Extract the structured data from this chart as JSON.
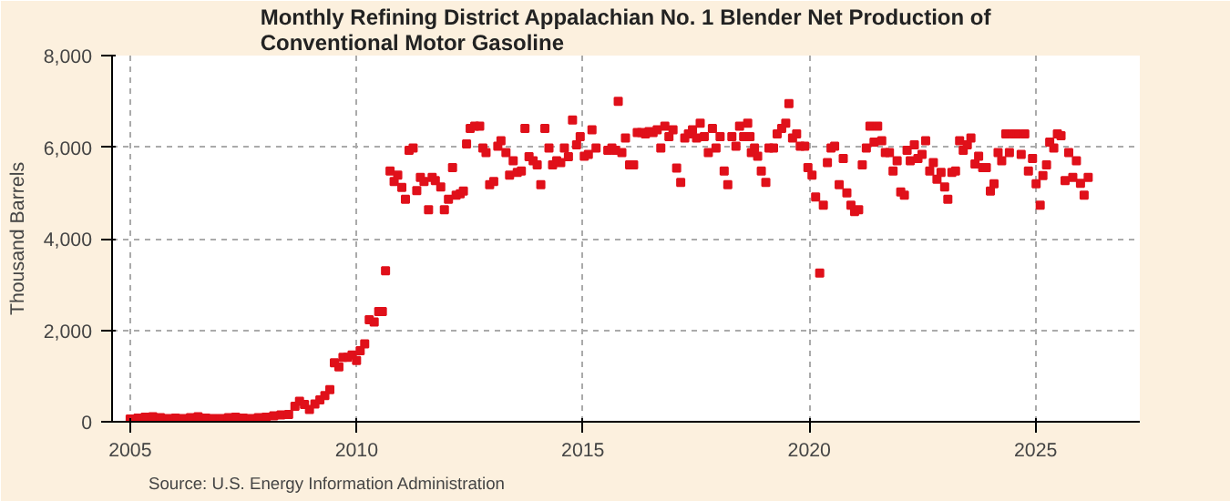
{
  "chart_data": {
    "type": "scatter",
    "title": "Monthly Refining District Appalachian No. 1 Blender Net Production of Conventional Motor Gasoline",
    "ylabel": "Thousand Barrels",
    "annotations": [
      "Source: U.S. Energy Information Administration"
    ],
    "marker": "square",
    "grid": true,
    "xlim": [
      2004.6,
      2027.3
    ],
    "xticks": [
      2005,
      2010,
      2015,
      2020,
      2025
    ],
    "ylim": [
      0,
      8000
    ],
    "yticks": [
      0,
      {
        "value": 2000,
        "label": "2,000"
      },
      {
        "value": 4000,
        "label": "4,000"
      },
      {
        "value": 6000,
        "label": "6,000"
      },
      {
        "value": 8000,
        "label": "8,000"
      }
    ],
    "series": [
      {
        "color": "#e0101a",
        "x": [
          2005.0,
          2005.17,
          2005.33,
          2005.5,
          2005.67,
          2005.83,
          2006.0,
          2006.17,
          2006.33,
          2006.5,
          2006.67,
          2006.83,
          2007.0,
          2007.17,
          2007.33,
          2007.5,
          2007.67,
          2007.83,
          2008.0,
          2008.17,
          2008.33,
          2008.5,
          2008.64,
          2008.74,
          2008.85,
          2008.96,
          2009.08,
          2009.19,
          2009.3,
          2009.41,
          2009.51,
          2009.61,
          2009.7,
          2009.8,
          2009.9,
          2010.0,
          2010.08,
          2010.18,
          2010.28,
          2010.39,
          2010.49,
          2010.57,
          2010.64,
          2010.74,
          2010.83,
          2010.91,
          2011.0,
          2011.08,
          2011.16,
          2011.25,
          2011.33,
          2011.41,
          2011.49,
          2011.59,
          2011.67,
          2011.74,
          2011.86,
          2011.94,
          2012.03,
          2012.12,
          2012.2,
          2012.29,
          2012.36,
          2012.43,
          2012.51,
          2012.61,
          2012.72,
          2012.79,
          2012.86,
          2012.94,
          2013.03,
          2013.12,
          2013.19,
          2013.3,
          2013.38,
          2013.46,
          2013.55,
          2013.64,
          2013.72,
          2013.81,
          2013.9,
          2013.99,
          2014.07,
          2014.16,
          2014.25,
          2014.33,
          2014.42,
          2014.51,
          2014.59,
          2014.68,
          2014.77,
          2014.86,
          2014.94,
          2015.03,
          2015.12,
          2015.2,
          2015.29,
          2015.55,
          2015.64,
          2015.72,
          2015.78,
          2015.86,
          2015.94,
          2016.03,
          2016.12,
          2016.2,
          2016.29,
          2016.38,
          2016.46,
          2016.55,
          2016.64,
          2016.72,
          2016.81,
          2016.9,
          2016.99,
          2017.07,
          2017.16,
          2017.25,
          2017.33,
          2017.42,
          2017.51,
          2017.59,
          2017.68,
          2017.77,
          2017.86,
          2017.94,
          2018.03,
          2018.12,
          2018.2,
          2018.29,
          2018.38,
          2018.46,
          2018.55,
          2018.64,
          2018.69,
          2018.72,
          2018.79,
          2018.86,
          2018.94,
          2019.04,
          2019.11,
          2019.21,
          2019.29,
          2019.39,
          2019.48,
          2019.55,
          2019.63,
          2019.72,
          2019.8,
          2019.9,
          2019.97,
          2020.06,
          2020.14,
          2020.23,
          2020.31,
          2020.4,
          2020.48,
          2020.56,
          2020.66,
          2020.75,
          2020.83,
          2020.92,
          2021.0,
          2021.09,
          2021.17,
          2021.26,
          2021.34,
          2021.43,
          2021.51,
          2021.6,
          2021.68,
          2021.77,
          2021.85,
          2021.94,
          2022.02,
          2022.1,
          2022.16,
          2022.23,
          2022.32,
          2022.4,
          2022.49,
          2022.57,
          2022.66,
          2022.74,
          2022.82,
          2022.91,
          2022.99,
          2023.06,
          2023.15,
          2023.23,
          2023.32,
          2023.4,
          2023.49,
          2023.57,
          2023.66,
          2023.74,
          2023.83,
          2023.91,
          2024.0,
          2024.08,
          2024.17,
          2024.25,
          2024.34,
          2024.42,
          2024.51,
          2024.59,
          2024.68,
          2024.76,
          2024.84,
          2024.93,
          2025.01,
          2025.1,
          2025.16,
          2025.24,
          2025.31,
          2025.4,
          2025.48,
          2025.56,
          2025.65,
          2025.73,
          2025.82,
          2025.9,
          2025.99,
          2026.07,
          2026.16
        ],
        "values": [
          60,
          80,
          100,
          110,
          90,
          70,
          80,
          70,
          90,
          110,
          80,
          70,
          70,
          90,
          100,
          80,
          70,
          90,
          100,
          130,
          150,
          160,
          340,
          450,
          380,
          270,
          390,
          480,
          570,
          700,
          1290,
          1200,
          1410,
          1410,
          1460,
          1340,
          1550,
          1700,
          2230,
          2180,
          2410,
          2410,
          3300,
          5480,
          5250,
          5390,
          5120,
          4860,
          5930,
          5980,
          5050,
          5340,
          5250,
          4630,
          5340,
          5270,
          5130,
          4630,
          4860,
          5550,
          4950,
          4980,
          5040,
          6070,
          6410,
          6460,
          6460,
          5980,
          5880,
          5180,
          5250,
          6020,
          6140,
          5880,
          5390,
          5700,
          5450,
          5480,
          6410,
          5790,
          5700,
          5610,
          5180,
          6410,
          5980,
          5610,
          5700,
          5660,
          5980,
          5790,
          6590,
          6050,
          6230,
          5800,
          5840,
          6380,
          5980,
          5930,
          5980,
          5930,
          7000,
          5880,
          6200,
          5610,
          5610,
          6320,
          6320,
          6290,
          6340,
          6320,
          6380,
          5980,
          6460,
          6230,
          6380,
          5540,
          5230,
          6200,
          6290,
          6380,
          6200,
          6520,
          6230,
          5880,
          6410,
          5980,
          6230,
          5480,
          5180,
          6230,
          6020,
          6460,
          6230,
          6520,
          6230,
          5880,
          5980,
          5800,
          5480,
          5230,
          5980,
          5980,
          6290,
          6410,
          6520,
          6950,
          6200,
          6290,
          6020,
          6020,
          5550,
          5390,
          4910,
          3250,
          4730,
          5660,
          5980,
          6020,
          5180,
          5750,
          5000,
          4730,
          4590,
          4630,
          5610,
          5980,
          6460,
          6110,
          6460,
          6140,
          5880,
          5880,
          5480,
          5700,
          5020,
          4950,
          5930,
          5700,
          6050,
          5750,
          5840,
          6140,
          5480,
          5660,
          5300,
          5450,
          5130,
          4860,
          5450,
          5480,
          6140,
          5930,
          6050,
          6200,
          5630,
          5800,
          5550,
          5550,
          5040,
          5200,
          5880,
          5700,
          6290,
          5880,
          6290,
          6290,
          5840,
          6290,
          5480,
          5750,
          5200,
          4730,
          5380,
          5610,
          6110,
          5980,
          6290,
          6250,
          5270,
          5880,
          5340,
          5700,
          5210,
          4950,
          5340
        ]
      }
    ]
  }
}
